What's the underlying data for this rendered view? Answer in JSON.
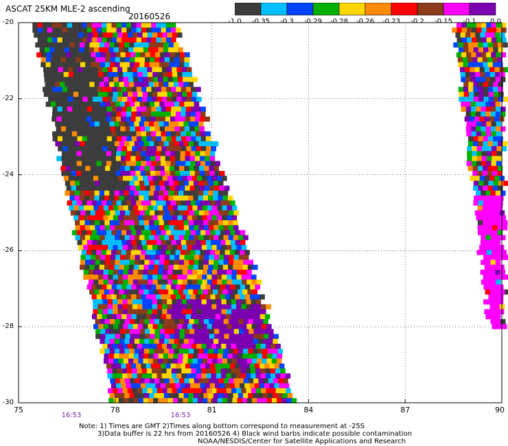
{
  "title": "ASCAT 25KM MLE-2 ascending",
  "date": "20160526",
  "colorbar": {
    "labels": [
      "-1.0",
      "-0.35",
      "-0.3",
      "-0.29",
      "-0.28",
      "-0.26",
      "-0.23",
      "-0.2",
      "-0.15",
      "-0.1",
      "0.0"
    ],
    "colors": [
      "#3c3c3c",
      "#00bfff",
      "#0044ff",
      "#00b000",
      "#ffd700",
      "#ff8c00",
      "#ff0000",
      "#8b3a1a",
      "#ff00ff",
      "#7a00b0"
    ]
  },
  "y_axis_labels": [
    "-20",
    "-22",
    "-24",
    "-26",
    "-28",
    "-30"
  ],
  "x_axis_labels": [
    "75",
    "78",
    "81",
    "84",
    "87",
    "90"
  ],
  "time_labels": [
    "16:53",
    "16:53"
  ],
  "notes": [
    "Note: 1) Times are GMT 2)Times along bottom correspond to measurement at -25S",
    "3)Data buffer is 22 hrs from 20160526 4) Black wind barbs indicate possible contamination",
    "NOAA/NESDIS/Center for Satellite Applications and Research"
  ],
  "map": {
    "lon_range": [
      75,
      90
    ],
    "lat_range": [
      -30,
      -20
    ],
    "swaths": [
      {
        "name": "main-swath",
        "lat_top": -20,
        "lat_bottom": -30,
        "lon_left_top": 75.4,
        "lon_left_bottom": 77.9,
        "lon_right_top": 79.8,
        "lon_right_bottom": 83.6
      },
      {
        "name": "east-swath",
        "lat_top": -20,
        "lat_bottom": -28,
        "lon_left_top": 88.5,
        "lon_left_bottom": 89.6,
        "lon_right_top": 90,
        "lon_right_bottom": 90
      }
    ]
  }
}
